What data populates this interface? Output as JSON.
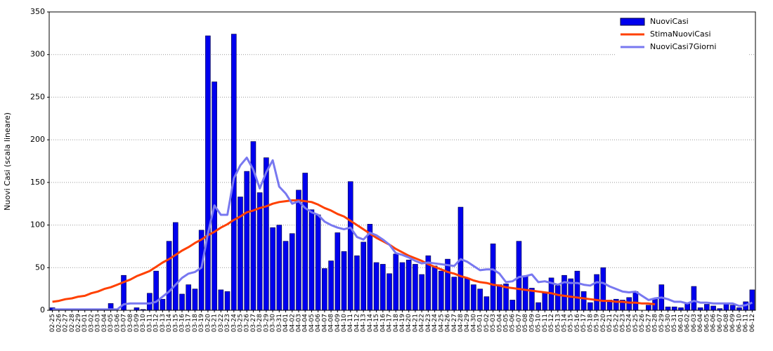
{
  "chart_data": {
    "type": "bar",
    "y_label": "Nuovi Casi (scala lineare)",
    "ylim": [
      0,
      350
    ],
    "yticks": [
      0,
      50,
      100,
      150,
      200,
      250,
      300,
      350
    ],
    "grid": true,
    "legend": "top-right",
    "categories": [
      "02-25",
      "02-26",
      "02-27",
      "02-28",
      "02-29",
      "03-01",
      "03-02",
      "03-03",
      "03-04",
      "03-05",
      "03-06",
      "03-07",
      "03-08",
      "03-09",
      "03-10",
      "03-11",
      "03-12",
      "03-13",
      "03-14",
      "03-15",
      "03-16",
      "03-17",
      "03-18",
      "03-19",
      "03-20",
      "03-21",
      "03-22",
      "03-23",
      "03-24",
      "03-25",
      "03-26",
      "03-27",
      "03-28",
      "03-29",
      "03-30",
      "03-31",
      "04-01",
      "04-02",
      "04-03",
      "04-04",
      "04-05",
      "04-06",
      "04-07",
      "04-08",
      "04-09",
      "04-10",
      "04-11",
      "04-12",
      "04-13",
      "04-14",
      "04-15",
      "04-16",
      "04-17",
      "04-18",
      "04-19",
      "04-20",
      "04-21",
      "04-22",
      "04-23",
      "04-24",
      "04-25",
      "04-26",
      "04-27",
      "04-28",
      "04-29",
      "04-30",
      "05-01",
      "05-02",
      "05-03",
      "05-04",
      "05-05",
      "05-06",
      "05-07",
      "05-08",
      "05-09",
      "05-10",
      "05-11",
      "05-12",
      "05-13",
      "05-14",
      "05-15",
      "05-16",
      "05-17",
      "05-18",
      "05-19",
      "05-20",
      "05-21",
      "05-22",
      "05-23",
      "05-24",
      "05-25",
      "05-26",
      "05-27",
      "05-28",
      "05-29",
      "05-30",
      "05-31",
      "06-01",
      "06-02",
      "06-03",
      "06-04",
      "06-05",
      "06-06",
      "06-07",
      "06-08",
      "06-09",
      "06-10",
      "06-11",
      "06-12"
    ],
    "series": [
      {
        "name": "NuoviCasi",
        "type": "bar",
        "color": "#0000ee",
        "values": [
          3,
          0,
          0,
          0,
          0,
          0,
          0,
          0,
          0,
          8,
          0,
          41,
          0,
          3,
          1,
          20,
          46,
          13,
          81,
          103,
          19,
          30,
          25,
          94,
          322,
          268,
          24,
          22,
          324,
          133,
          163,
          198,
          138,
          179,
          97,
          100,
          81,
          90,
          141,
          161,
          118,
          112,
          49,
          58,
          91,
          69,
          151,
          64,
          80,
          101,
          56,
          54,
          43,
          66,
          56,
          59,
          54,
          42,
          64,
          52,
          46,
          60,
          39,
          121,
          38,
          30,
          25,
          16,
          78,
          30,
          31,
          12,
          81,
          40,
          26,
          9,
          20,
          38,
          29,
          41,
          37,
          46,
          22,
          9,
          42,
          50,
          12,
          13,
          12,
          15,
          22,
          0,
          6,
          14,
          30,
          4,
          4,
          3,
          8,
          28,
          3,
          7,
          5,
          2,
          8,
          6,
          3,
          10,
          24
        ]
      },
      {
        "name": "StimaNuoviCasi",
        "type": "line",
        "color": "#ff4000",
        "values": [
          10,
          11,
          13,
          14,
          16,
          17,
          20,
          22,
          25,
          27,
          30,
          33,
          36,
          40,
          43,
          46,
          51,
          56,
          60,
          65,
          70,
          74,
          79,
          83,
          88,
          92,
          97,
          101,
          106,
          110,
          115,
          117,
          120,
          122,
          125,
          127,
          128,
          129,
          129,
          128,
          127,
          124,
          120,
          117,
          113,
          110,
          105,
          100,
          95,
          90,
          85,
          81,
          77,
          72,
          68,
          64,
          61,
          58,
          54,
          51,
          48,
          45,
          43,
          40,
          38,
          35,
          33,
          32,
          30,
          29,
          27,
          26,
          25,
          24,
          23,
          22,
          21,
          20,
          18,
          17,
          16,
          15,
          14,
          13,
          12,
          11,
          11,
          10,
          10,
          9,
          9,
          8,
          8,
          7,
          null,
          null,
          null,
          null,
          null,
          null,
          null,
          null,
          null,
          null,
          null,
          null,
          null,
          null,
          null
        ]
      },
      {
        "name": "NuoviCasi7Giorni",
        "type": "line",
        "color": "#7878f0",
        "values": [
          1,
          1,
          1,
          1,
          1,
          1,
          1,
          1,
          1,
          1,
          1,
          7,
          8,
          8,
          8,
          8,
          10,
          16,
          22,
          30,
          38,
          43,
          45,
          50,
          90,
          123,
          112,
          112,
          155,
          170,
          179,
          165,
          143,
          162,
          176,
          145,
          137,
          125,
          128,
          120,
          115,
          112,
          104,
          100,
          97,
          95,
          97,
          86,
          83,
          91,
          88,
          83,
          77,
          67,
          65,
          62,
          58,
          55,
          56,
          55,
          54,
          53,
          52,
          60,
          57,
          52,
          47,
          48,
          48,
          43,
          33,
          34,
          39,
          40,
          42,
          33,
          34,
          32,
          30,
          33,
          32,
          32,
          30,
          29,
          33,
          32,
          28,
          25,
          22,
          21,
          22,
          17,
          12,
          14,
          15,
          13,
          10,
          10,
          8,
          11,
          9,
          9,
          8,
          8,
          8,
          8,
          5,
          6,
          9
        ]
      }
    ]
  }
}
